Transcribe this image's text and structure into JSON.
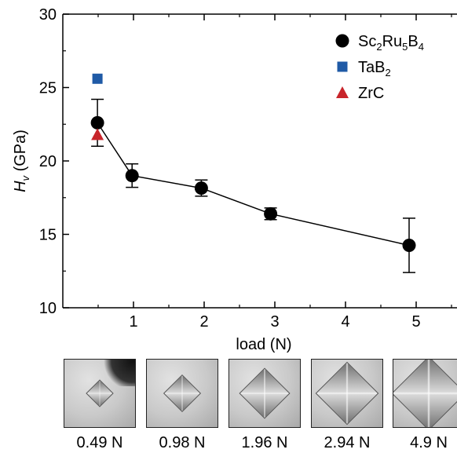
{
  "chart_data": {
    "type": "scatter",
    "ylabel_main": "H",
    "ylabel_sub": "v",
    "ylabel_unit": " (GPa)",
    "xlabel": "load (N)",
    "xlim": [
      0,
      6
    ],
    "ylim": [
      10,
      30
    ],
    "xticks": [
      1,
      2,
      3,
      4,
      5
    ],
    "yticks": [
      10,
      15,
      20,
      25,
      30
    ],
    "grid": false,
    "legend_position": "top-right",
    "series": [
      {
        "name": "Sc2Ru5B4",
        "legend_parts": [
          [
            "Sc",
            "n"
          ],
          [
            "2",
            "s"
          ],
          [
            "Ru",
            "n"
          ],
          [
            "5",
            "s"
          ],
          [
            "B",
            "n"
          ],
          [
            "4",
            "s"
          ]
        ],
        "marker": "circle",
        "color": "#000000",
        "connected": true,
        "points": [
          {
            "x": 0.49,
            "y": 22.6,
            "err": 1.6
          },
          {
            "x": 0.98,
            "y": 19.0,
            "err": 0.8
          },
          {
            "x": 1.96,
            "y": 18.15,
            "err": 0.55
          },
          {
            "x": 2.94,
            "y": 16.4,
            "err": 0.4
          },
          {
            "x": 4.9,
            "y": 14.25,
            "err": 1.85
          }
        ]
      },
      {
        "name": "TaB2",
        "legend_parts": [
          [
            "TaB",
            "n"
          ],
          [
            "2",
            "s"
          ]
        ],
        "marker": "square",
        "color": "#1f5aa6",
        "connected": false,
        "points": [
          {
            "x": 0.49,
            "y": 25.6
          }
        ]
      },
      {
        "name": "ZrC",
        "legend_parts": [
          [
            "ZrC",
            "n"
          ]
        ],
        "marker": "triangle",
        "color": "#c8252b",
        "connected": false,
        "points": [
          {
            "x": 0.49,
            "y": 21.8
          }
        ]
      }
    ]
  },
  "micrographs": [
    {
      "label": "0.49 N",
      "indent_scale": 0.22,
      "dark_corner": true
    },
    {
      "label": "0.98 N",
      "indent_scale": 0.3,
      "dark_corner": false
    },
    {
      "label": "1.96 N",
      "indent_scale": 0.42,
      "dark_corner": false
    },
    {
      "label": "2.94 N",
      "indent_scale": 0.52,
      "dark_corner": false
    },
    {
      "label": "4.9 N",
      "indent_scale": 0.62,
      "dark_corner": false
    }
  ]
}
